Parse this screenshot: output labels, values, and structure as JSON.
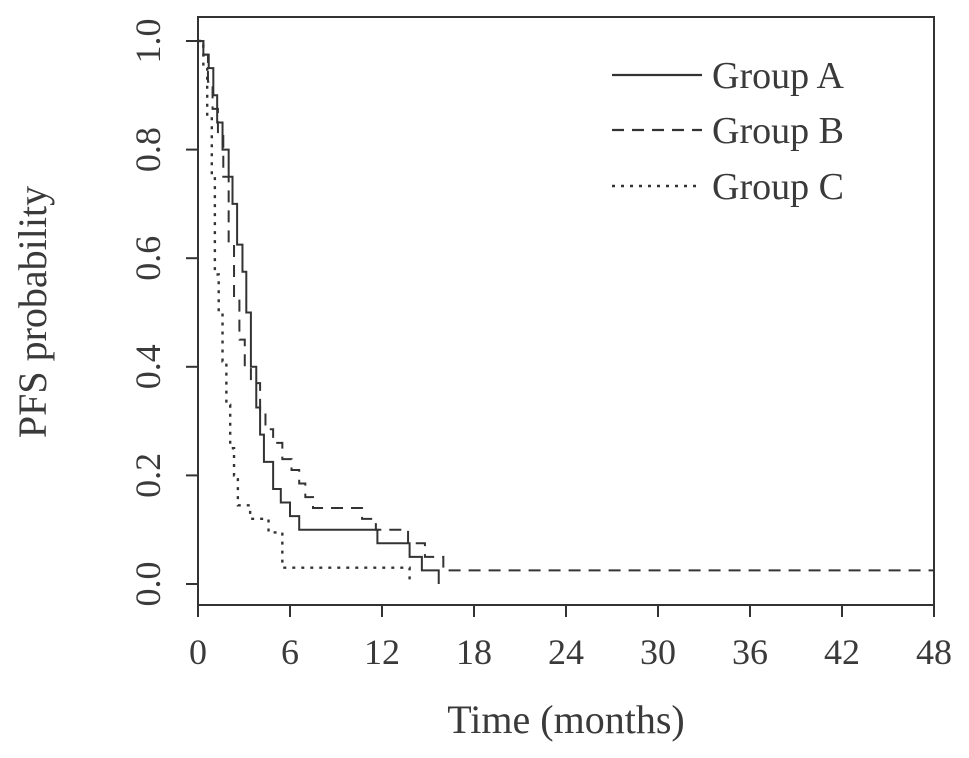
{
  "chart_data": {
    "type": "line",
    "step": true,
    "title": "",
    "xlabel": "Time (months)",
    "ylabel": "PFS probability",
    "xlim": [
      0,
      48
    ],
    "ylim": [
      0.0,
      1.0
    ],
    "x_ticks": [
      "0",
      "6",
      "12",
      "18",
      "24",
      "30",
      "36",
      "42",
      "48"
    ],
    "y_ticks": [
      "0.0",
      "0.2",
      "0.4",
      "0.6",
      "0.8",
      "1.0"
    ],
    "grid": false,
    "legend": {
      "placement": "top-right",
      "entries": [
        "Group A",
        "Group B",
        "Group C"
      ]
    },
    "series": [
      {
        "name": "Group A",
        "line_style": "solid",
        "color": "#333333",
        "x": [
          0,
          0.35,
          0.7,
          1.0,
          1.25,
          1.6,
          2.0,
          2.25,
          2.55,
          2.9,
          3.15,
          3.45,
          3.8,
          4.05,
          4.3,
          4.9,
          5.4,
          6.0,
          6.6,
          7.2,
          8.5,
          10.0,
          11.3,
          11.7,
          13.0,
          13.4,
          13.8,
          14.6,
          15.7
        ],
        "y": [
          1.0,
          0.975,
          0.95,
          0.9,
          0.85,
          0.8,
          0.75,
          0.7,
          0.625,
          0.575,
          0.5,
          0.4,
          0.325,
          0.275,
          0.225,
          0.175,
          0.15,
          0.125,
          0.1,
          0.1,
          0.1,
          0.1,
          0.1,
          0.075,
          0.075,
          0.075,
          0.05,
          0.025,
          0.0
        ]
      },
      {
        "name": "Group B",
        "line_style": "dashed",
        "color": "#333333",
        "x": [
          0,
          0.35,
          0.65,
          0.95,
          1.3,
          1.65,
          2.0,
          2.35,
          2.7,
          3.05,
          3.45,
          4.05,
          4.4,
          4.9,
          5.5,
          6.1,
          6.6,
          7.0,
          7.5,
          8.3,
          9.6,
          10.7,
          11.6,
          12.2,
          13.7,
          14.8,
          16.0,
          48.0
        ],
        "y": [
          1.0,
          0.975,
          0.925,
          0.875,
          0.825,
          0.75,
          0.625,
          0.525,
          0.45,
          0.4,
          0.37,
          0.32,
          0.285,
          0.26,
          0.23,
          0.21,
          0.185,
          0.16,
          0.14,
          0.14,
          0.14,
          0.12,
          0.1,
          0.1,
          0.075,
          0.05,
          0.025,
          0.025
        ]
      },
      {
        "name": "Group C",
        "line_style": "dotted",
        "color": "#333333",
        "x": [
          0,
          0.35,
          0.6,
          0.9,
          1.1,
          1.35,
          1.6,
          1.85,
          2.1,
          2.35,
          2.6,
          3.4,
          4.0,
          4.6,
          5.5,
          6.5,
          8.0,
          10.0,
          12.0,
          13.8
        ],
        "y": [
          1.0,
          0.95,
          0.86,
          0.75,
          0.57,
          0.5,
          0.41,
          0.33,
          0.25,
          0.2,
          0.145,
          0.12,
          0.12,
          0.095,
          0.03,
          0.03,
          0.03,
          0.03,
          0.03,
          0.0
        ]
      }
    ]
  }
}
